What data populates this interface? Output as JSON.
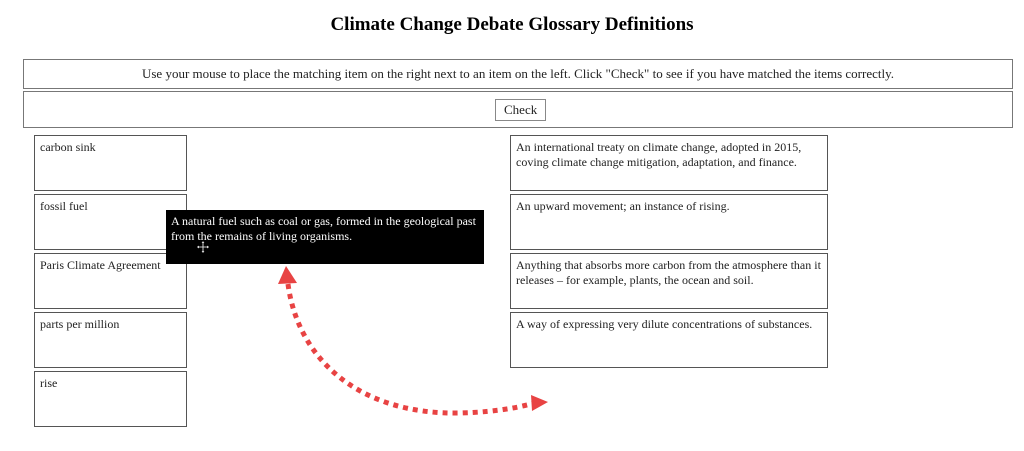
{
  "page": {
    "title": "Climate Change Debate Glossary Definitions",
    "instructions": "Use your mouse to place the matching item on the right next to an item on the left. Click \"Check\" to see if you have matched the items correctly.",
    "check_label": "Check"
  },
  "terms": [
    "carbon sink",
    "fossil fuel",
    "Paris Climate Agreement",
    "parts per million",
    "rise"
  ],
  "definitions": [
    "An international treaty on climate change, adopted in 2015, coving climate change mitigation, adaptation, and finance.",
    "An upward movement; an instance of rising.",
    "Anything that absorbs more carbon from the atmosphere than it releases – for example, plants, the ocean and soil.",
    "A way of expressing very dilute concentrations of substances."
  ],
  "dragged_item": {
    "text": "A natural fuel such as coal or gas, formed in the geological past from the remains of living organisms."
  },
  "colors": {
    "dragged_background": "#000000",
    "annotation_arrow": "#e84343"
  },
  "icons": {
    "cursor": "move-cursor-icon",
    "annotation": "curved-arrow-annotation"
  }
}
